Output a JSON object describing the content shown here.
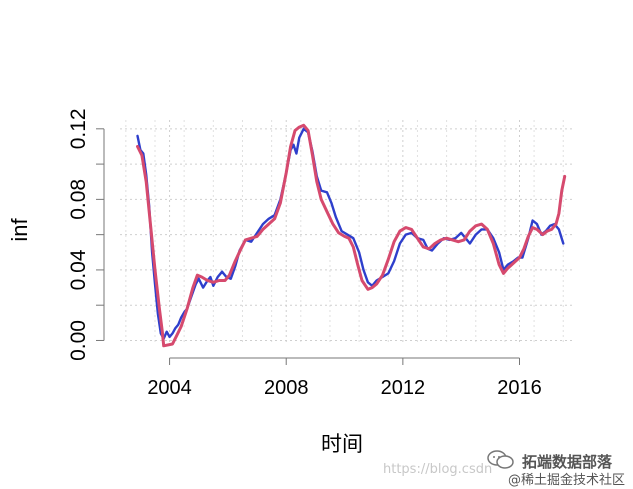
{
  "chart_data": {
    "type": "line",
    "title": "",
    "xlabel": "时间",
    "ylabel": "inf",
    "xlim": [
      2002.3,
      2017.8
    ],
    "ylim": [
      -0.002,
      0.125
    ],
    "grid": true,
    "x_ticks": [
      2004,
      2008,
      2012,
      2016
    ],
    "x_tick_labels": [
      "2004",
      "2008",
      "2012",
      "2016"
    ],
    "y_ticks": [
      0.0,
      0.04,
      0.08,
      0.12
    ],
    "y_tick_labels": [
      "0.00",
      "0.04",
      "0.08",
      "0.12"
    ],
    "y_minor_ticks": [
      0.02,
      0.06,
      0.1
    ],
    "series": [
      {
        "color": "#2e3fcc",
        "points": [
          [
            2002.9,
            0.116
          ],
          [
            2003.0,
            0.108
          ],
          [
            2003.1,
            0.106
          ],
          [
            2003.2,
            0.094
          ],
          [
            2003.3,
            0.076
          ],
          [
            2003.4,
            0.05
          ],
          [
            2003.5,
            0.032
          ],
          [
            2003.6,
            0.015
          ],
          [
            2003.7,
            0.004
          ],
          [
            2003.8,
            0.001
          ],
          [
            2003.9,
            0.005
          ],
          [
            2004.0,
            0.002
          ],
          [
            2004.1,
            0.004
          ],
          [
            2004.2,
            0.007
          ],
          [
            2004.3,
            0.009
          ],
          [
            2004.4,
            0.013
          ],
          [
            2004.5,
            0.016
          ],
          [
            2004.6,
            0.018
          ],
          [
            2004.75,
            0.025
          ],
          [
            2004.9,
            0.032
          ],
          [
            2005.0,
            0.035
          ],
          [
            2005.15,
            0.03
          ],
          [
            2005.3,
            0.034
          ],
          [
            2005.4,
            0.036
          ],
          [
            2005.5,
            0.031
          ],
          [
            2005.65,
            0.036
          ],
          [
            2005.8,
            0.039
          ],
          [
            2005.95,
            0.036
          ],
          [
            2006.1,
            0.035
          ],
          [
            2006.25,
            0.042
          ],
          [
            2006.4,
            0.051
          ],
          [
            2006.6,
            0.057
          ],
          [
            2006.8,
            0.056
          ],
          [
            2007.0,
            0.061
          ],
          [
            2007.2,
            0.066
          ],
          [
            2007.4,
            0.069
          ],
          [
            2007.6,
            0.071
          ],
          [
            2007.8,
            0.08
          ],
          [
            2008.0,
            0.095
          ],
          [
            2008.15,
            0.108
          ],
          [
            2008.25,
            0.111
          ],
          [
            2008.35,
            0.106
          ],
          [
            2008.45,
            0.115
          ],
          [
            2008.6,
            0.12
          ],
          [
            2008.75,
            0.118
          ],
          [
            2008.9,
            0.107
          ],
          [
            2009.05,
            0.093
          ],
          [
            2009.2,
            0.085
          ],
          [
            2009.4,
            0.084
          ],
          [
            2009.55,
            0.078
          ],
          [
            2009.7,
            0.07
          ],
          [
            2009.9,
            0.062
          ],
          [
            2010.1,
            0.06
          ],
          [
            2010.3,
            0.058
          ],
          [
            2010.5,
            0.05
          ],
          [
            2010.65,
            0.04
          ],
          [
            2010.8,
            0.033
          ],
          [
            2010.95,
            0.031
          ],
          [
            2011.1,
            0.034
          ],
          [
            2011.3,
            0.036
          ],
          [
            2011.5,
            0.038
          ],
          [
            2011.7,
            0.045
          ],
          [
            2011.9,
            0.055
          ],
          [
            2012.1,
            0.06
          ],
          [
            2012.3,
            0.061
          ],
          [
            2012.5,
            0.058
          ],
          [
            2012.7,
            0.057
          ],
          [
            2012.85,
            0.052
          ],
          [
            2013.0,
            0.051
          ],
          [
            2013.2,
            0.055
          ],
          [
            2013.4,
            0.058
          ],
          [
            2013.6,
            0.057
          ],
          [
            2013.8,
            0.058
          ],
          [
            2014.0,
            0.061
          ],
          [
            2014.15,
            0.058
          ],
          [
            2014.3,
            0.055
          ],
          [
            2014.5,
            0.06
          ],
          [
            2014.7,
            0.063
          ],
          [
            2014.9,
            0.063
          ],
          [
            2015.1,
            0.058
          ],
          [
            2015.3,
            0.05
          ],
          [
            2015.45,
            0.04
          ],
          [
            2015.6,
            0.043
          ],
          [
            2015.8,
            0.045
          ],
          [
            2015.95,
            0.047
          ],
          [
            2016.1,
            0.047
          ],
          [
            2016.3,
            0.058
          ],
          [
            2016.45,
            0.068
          ],
          [
            2016.6,
            0.066
          ],
          [
            2016.75,
            0.06
          ],
          [
            2016.9,
            0.062
          ],
          [
            2017.05,
            0.065
          ],
          [
            2017.2,
            0.066
          ],
          [
            2017.35,
            0.063
          ],
          [
            2017.5,
            0.055
          ]
        ]
      },
      {
        "color": "#d64a6e",
        "points": [
          [
            2002.9,
            0.11
          ],
          [
            2003.05,
            0.105
          ],
          [
            2003.2,
            0.09
          ],
          [
            2003.35,
            0.065
          ],
          [
            2003.5,
            0.04
          ],
          [
            2003.65,
            0.018
          ],
          [
            2003.75,
            0.005
          ],
          [
            2003.8,
            -0.003
          ],
          [
            2004.1,
            -0.002
          ],
          [
            2004.25,
            0.003
          ],
          [
            2004.4,
            0.008
          ],
          [
            2004.6,
            0.018
          ],
          [
            2004.8,
            0.03
          ],
          [
            2004.95,
            0.037
          ],
          [
            2005.1,
            0.036
          ],
          [
            2005.3,
            0.034
          ],
          [
            2005.5,
            0.033
          ],
          [
            2005.7,
            0.034
          ],
          [
            2005.9,
            0.034
          ],
          [
            2006.05,
            0.037
          ],
          [
            2006.25,
            0.045
          ],
          [
            2006.45,
            0.052
          ],
          [
            2006.6,
            0.057
          ],
          [
            2006.8,
            0.058
          ],
          [
            2007.0,
            0.059
          ],
          [
            2007.2,
            0.063
          ],
          [
            2007.4,
            0.066
          ],
          [
            2007.6,
            0.069
          ],
          [
            2007.8,
            0.078
          ],
          [
            2008.0,
            0.095
          ],
          [
            2008.15,
            0.11
          ],
          [
            2008.3,
            0.119
          ],
          [
            2008.45,
            0.121
          ],
          [
            2008.6,
            0.122
          ],
          [
            2008.75,
            0.119
          ],
          [
            2008.9,
            0.105
          ],
          [
            2009.05,
            0.09
          ],
          [
            2009.2,
            0.08
          ],
          [
            2009.4,
            0.073
          ],
          [
            2009.6,
            0.066
          ],
          [
            2009.8,
            0.061
          ],
          [
            2010.0,
            0.059
          ],
          [
            2010.15,
            0.058
          ],
          [
            2010.3,
            0.053
          ],
          [
            2010.45,
            0.043
          ],
          [
            2010.6,
            0.034
          ],
          [
            2010.8,
            0.029
          ],
          [
            2010.95,
            0.03
          ],
          [
            2011.1,
            0.032
          ],
          [
            2011.3,
            0.037
          ],
          [
            2011.5,
            0.046
          ],
          [
            2011.7,
            0.056
          ],
          [
            2011.9,
            0.062
          ],
          [
            2012.1,
            0.064
          ],
          [
            2012.3,
            0.063
          ],
          [
            2012.5,
            0.058
          ],
          [
            2012.7,
            0.053
          ],
          [
            2012.9,
            0.052
          ],
          [
            2013.1,
            0.055
          ],
          [
            2013.3,
            0.057
          ],
          [
            2013.5,
            0.058
          ],
          [
            2013.7,
            0.057
          ],
          [
            2013.9,
            0.056
          ],
          [
            2014.1,
            0.057
          ],
          [
            2014.3,
            0.062
          ],
          [
            2014.5,
            0.065
          ],
          [
            2014.7,
            0.066
          ],
          [
            2014.9,
            0.063
          ],
          [
            2015.1,
            0.055
          ],
          [
            2015.3,
            0.043
          ],
          [
            2015.45,
            0.038
          ],
          [
            2015.6,
            0.041
          ],
          [
            2015.8,
            0.044
          ],
          [
            2016.0,
            0.047
          ],
          [
            2016.15,
            0.052
          ],
          [
            2016.3,
            0.059
          ],
          [
            2016.45,
            0.064
          ],
          [
            2016.6,
            0.063
          ],
          [
            2016.8,
            0.06
          ],
          [
            2016.95,
            0.062
          ],
          [
            2017.1,
            0.063
          ],
          [
            2017.25,
            0.066
          ],
          [
            2017.35,
            0.072
          ],
          [
            2017.45,
            0.085
          ],
          [
            2017.55,
            0.093
          ]
        ]
      }
    ]
  },
  "watermark": {
    "url": "https://blog.csdn",
    "brand": "拓端数据部落",
    "sub": "@稀土掘金技术社区"
  }
}
